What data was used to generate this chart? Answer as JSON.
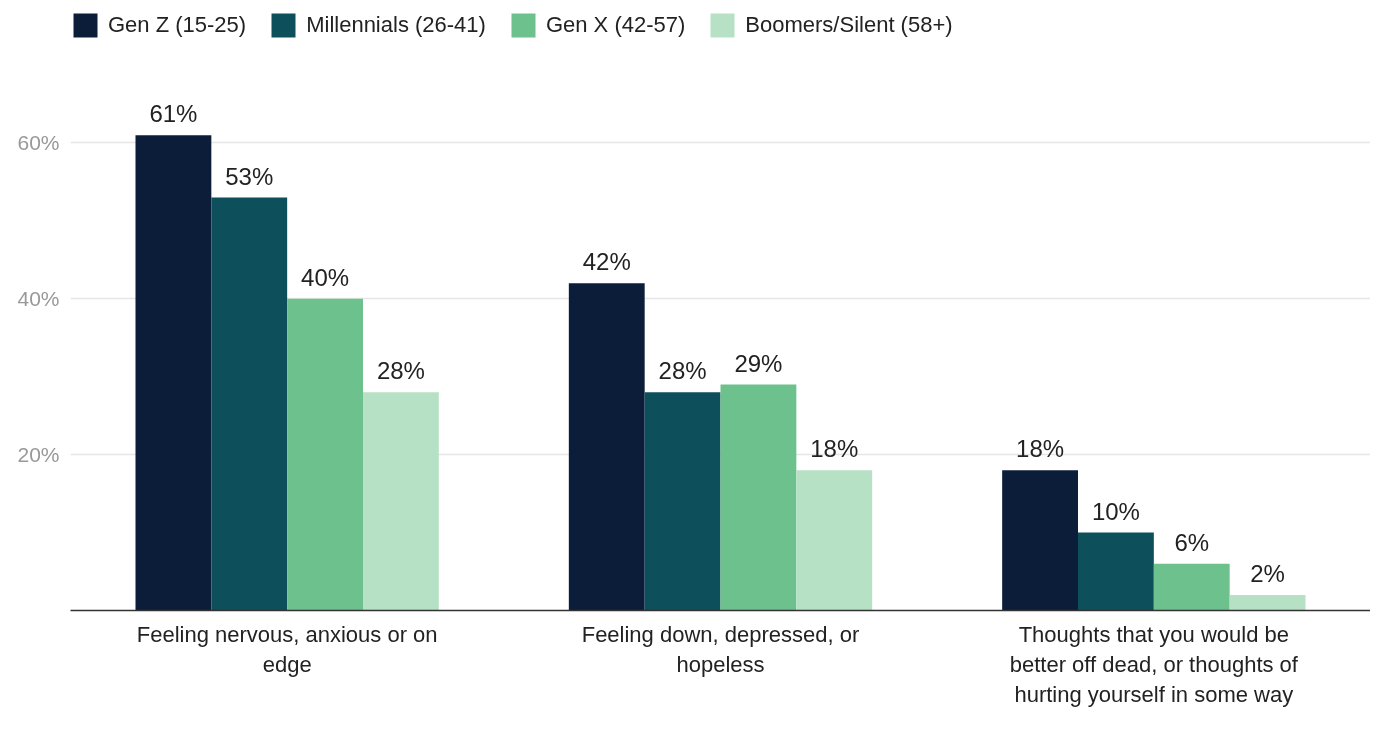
{
  "chart_data": {
    "type": "bar",
    "categories": [
      "Feeling nervous, anxious or on edge",
      "Feeling down, depressed, or hopeless",
      "Thoughts that you would be better off dead, or thoughts of hurting yourself in some way"
    ],
    "series": [
      {
        "name": "Gen Z (15-25)",
        "color": "#0b1d38",
        "values": [
          61,
          42,
          18
        ],
        "value_labels": [
          "61%",
          "42%",
          "18%"
        ]
      },
      {
        "name": "Millennials (26-41)",
        "color": "#0e4f5c",
        "values": [
          53,
          28,
          10
        ],
        "value_labels": [
          "53%",
          "28%",
          "10%"
        ]
      },
      {
        "name": "Gen X (42-57)",
        "color": "#6cc18c",
        "values": [
          40,
          29,
          6
        ],
        "value_labels": [
          "40%",
          "29%",
          "6%"
        ]
      },
      {
        "name": "Boomers/Silent (58+)",
        "color": "#b6e1c4",
        "values": [
          28,
          18,
          2
        ],
        "value_labels": [
          "28%",
          "18%",
          "2%"
        ]
      }
    ],
    "ylim": [
      0,
      77
    ],
    "yticks": [
      {
        "value": 20,
        "label": "20%"
      },
      {
        "value": 40,
        "label": "40%"
      },
      {
        "value": 60,
        "label": "60%"
      }
    ],
    "grid": "y",
    "legend": "top"
  }
}
